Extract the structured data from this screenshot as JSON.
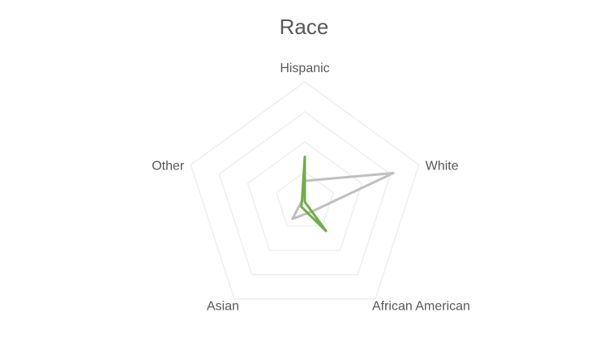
{
  "chart_data": {
    "type": "radar",
    "title": "Race",
    "categories": [
      "Hispanic",
      "White",
      "African American",
      "Asian",
      "Other"
    ],
    "rmax": 4,
    "rings": 4,
    "grid": true,
    "legend": "none",
    "series": [
      {
        "color": "#bfbfbf",
        "values": [
          0.7,
          3.1,
          0.4,
          0.7,
          0.1
        ]
      },
      {
        "color": "#70ad47",
        "values": [
          1.5,
          0.0,
          1.2,
          0.2,
          0.1
        ]
      }
    ]
  },
  "colors": {
    "grid": "#eeeeee",
    "text": "#595959"
  }
}
